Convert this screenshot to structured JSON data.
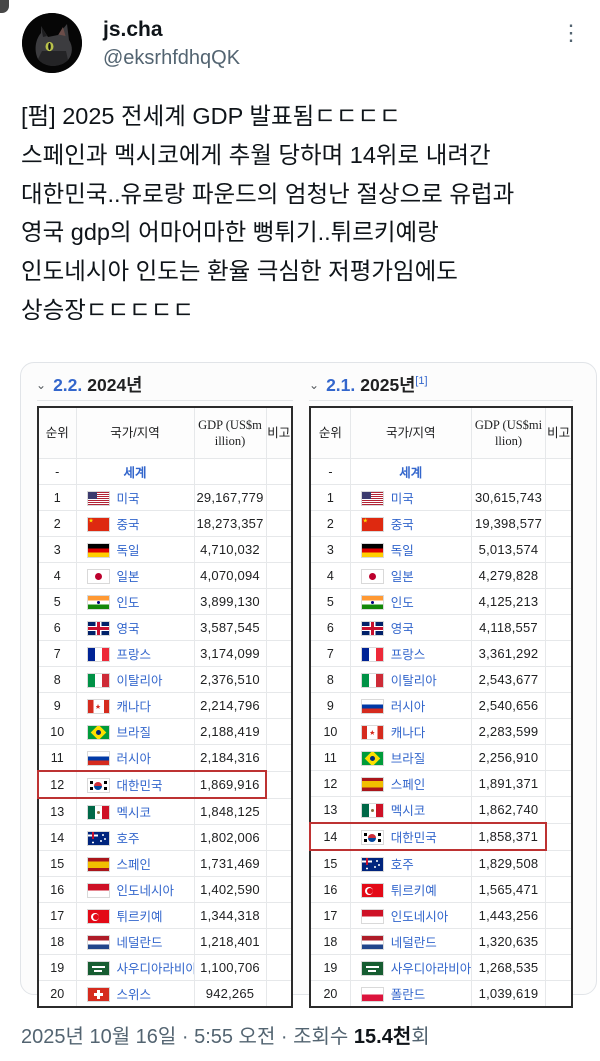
{
  "icons": {
    "chevron": "⌄",
    "menu": "⋮"
  },
  "tweet": {
    "author": {
      "name": "js.cha",
      "handle": "@eksrhfdhqQK"
    },
    "body": "[펌] 2025 전세계 GDP 발표됨ㄷㄷㄷㄷ\n스페인과 멕시코에게 추월 당하며 14위로 내려간\n대한민국..유로랑 파운드의 엄청난 절상으로 유럽과\n영국 gdp의 어마어마한 뻥튀기..튀르키예랑\n인도네시아 인도는 환율 극심한 저평가임에도\n상승장ㄷㄷㄷㄷㄷ",
    "footer": {
      "meta_prefix": "2025년 10월 16일 · 5:55 오전 · 조회수 ",
      "views_value": "15.4천",
      "views_suffix": "회"
    }
  },
  "image": {
    "tables": [
      {
        "section_number": "2.2.",
        "section_title": "2024년",
        "section_ref": "",
        "headers": {
          "rank": "순위",
          "country": "국가/지역",
          "gdp": "GDP (US$million)",
          "note": "비고"
        },
        "world_row": {
          "rank": "-",
          "label": "세계"
        },
        "highlight_rank": 12,
        "rows": [
          {
            "rank": "1",
            "flag": "us",
            "country": "미국",
            "gdp": "29,167,779"
          },
          {
            "rank": "2",
            "flag": "cn",
            "country": "중국",
            "gdp": "18,273,357"
          },
          {
            "rank": "3",
            "flag": "de",
            "country": "독일",
            "gdp": "4,710,032"
          },
          {
            "rank": "4",
            "flag": "jp",
            "country": "일본",
            "gdp": "4,070,094"
          },
          {
            "rank": "5",
            "flag": "in",
            "country": "인도",
            "gdp": "3,899,130"
          },
          {
            "rank": "6",
            "flag": "gb",
            "country": "영국",
            "gdp": "3,587,545"
          },
          {
            "rank": "7",
            "flag": "fr",
            "country": "프랑스",
            "gdp": "3,174,099"
          },
          {
            "rank": "8",
            "flag": "it",
            "country": "이탈리아",
            "gdp": "2,376,510"
          },
          {
            "rank": "9",
            "flag": "ca",
            "country": "캐나다",
            "gdp": "2,214,796"
          },
          {
            "rank": "10",
            "flag": "br",
            "country": "브라질",
            "gdp": "2,188,419"
          },
          {
            "rank": "11",
            "flag": "ru",
            "country": "러시아",
            "gdp": "2,184,316"
          },
          {
            "rank": "12",
            "flag": "kr",
            "country": "대한민국",
            "gdp": "1,869,916"
          },
          {
            "rank": "13",
            "flag": "mx",
            "country": "멕시코",
            "gdp": "1,848,125"
          },
          {
            "rank": "14",
            "flag": "au",
            "country": "호주",
            "gdp": "1,802,006"
          },
          {
            "rank": "15",
            "flag": "es",
            "country": "스페인",
            "gdp": "1,731,469"
          },
          {
            "rank": "16",
            "flag": "id",
            "country": "인도네시아",
            "gdp": "1,402,590"
          },
          {
            "rank": "17",
            "flag": "tr",
            "country": "튀르키예",
            "gdp": "1,344,318"
          },
          {
            "rank": "18",
            "flag": "nl",
            "country": "네덜란드",
            "gdp": "1,218,401"
          },
          {
            "rank": "19",
            "flag": "sa",
            "country": "사우디아라비아",
            "gdp": "1,100,706"
          },
          {
            "rank": "20",
            "flag": "ch",
            "country": "스위스",
            "gdp": "942,265"
          }
        ]
      },
      {
        "section_number": "2.1.",
        "section_title": "2025년",
        "section_ref": "[1]",
        "headers": {
          "rank": "순위",
          "country": "국가/지역",
          "gdp": "GDP (US$million)",
          "note": "비고"
        },
        "world_row": {
          "rank": "-",
          "label": "세계"
        },
        "highlight_rank": 14,
        "rows": [
          {
            "rank": "1",
            "flag": "us",
            "country": "미국",
            "gdp": "30,615,743"
          },
          {
            "rank": "2",
            "flag": "cn",
            "country": "중국",
            "gdp": "19,398,577"
          },
          {
            "rank": "3",
            "flag": "de",
            "country": "독일",
            "gdp": "5,013,574"
          },
          {
            "rank": "4",
            "flag": "jp",
            "country": "일본",
            "gdp": "4,279,828"
          },
          {
            "rank": "5",
            "flag": "in",
            "country": "인도",
            "gdp": "4,125,213"
          },
          {
            "rank": "6",
            "flag": "gb",
            "country": "영국",
            "gdp": "4,118,557"
          },
          {
            "rank": "7",
            "flag": "fr",
            "country": "프랑스",
            "gdp": "3,361,292"
          },
          {
            "rank": "8",
            "flag": "it",
            "country": "이탈리아",
            "gdp": "2,543,677"
          },
          {
            "rank": "9",
            "flag": "ru",
            "country": "러시아",
            "gdp": "2,540,656"
          },
          {
            "rank": "10",
            "flag": "ca",
            "country": "캐나다",
            "gdp": "2,283,599"
          },
          {
            "rank": "11",
            "flag": "br",
            "country": "브라질",
            "gdp": "2,256,910"
          },
          {
            "rank": "12",
            "flag": "es",
            "country": "스페인",
            "gdp": "1,891,371"
          },
          {
            "rank": "13",
            "flag": "mx",
            "country": "멕시코",
            "gdp": "1,862,740"
          },
          {
            "rank": "14",
            "flag": "kr",
            "country": "대한민국",
            "gdp": "1,858,371"
          },
          {
            "rank": "15",
            "flag": "au",
            "country": "호주",
            "gdp": "1,829,508"
          },
          {
            "rank": "16",
            "flag": "tr",
            "country": "튀르키예",
            "gdp": "1,565,471"
          },
          {
            "rank": "17",
            "flag": "id",
            "country": "인도네시아",
            "gdp": "1,443,256"
          },
          {
            "rank": "18",
            "flag": "nl",
            "country": "네덜란드",
            "gdp": "1,320,635"
          },
          {
            "rank": "19",
            "flag": "sa",
            "country": "사우디아라비아",
            "gdp": "1,268,535"
          },
          {
            "rank": "20",
            "flag": "pl",
            "country": "폴란드",
            "gdp": "1,039,619"
          }
        ]
      }
    ]
  }
}
